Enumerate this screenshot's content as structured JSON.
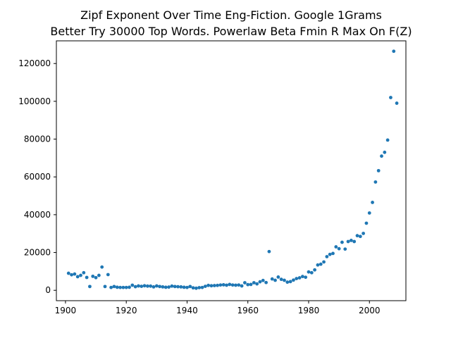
{
  "chart_data": {
    "type": "scatter",
    "title_line1": "Zipf Exponent Over Time Eng-Fiction. Google 1Grams",
    "title_line2": "Better Try 30000 Top Words. Powerlaw Beta Fmin R Max On F(Z)",
    "xlabel": "",
    "ylabel": "",
    "xlim": [
      1897,
      2012
    ],
    "ylim": [
      -5500,
      132000
    ],
    "xticks": [
      1900,
      1920,
      1940,
      1960,
      1980,
      2000
    ],
    "yticks": [
      0,
      20000,
      40000,
      60000,
      80000,
      100000,
      120000
    ],
    "grid": false,
    "marker_color": "#1f77b4",
    "points": [
      {
        "x": 1901,
        "y": 9000
      },
      {
        "x": 1902,
        "y": 8200
      },
      {
        "x": 1903,
        "y": 8600
      },
      {
        "x": 1904,
        "y": 7200
      },
      {
        "x": 1905,
        "y": 7900
      },
      {
        "x": 1906,
        "y": 9300
      },
      {
        "x": 1907,
        "y": 6800
      },
      {
        "x": 1908,
        "y": 2000
      },
      {
        "x": 1909,
        "y": 7400
      },
      {
        "x": 1910,
        "y": 6700
      },
      {
        "x": 1911,
        "y": 7900
      },
      {
        "x": 1912,
        "y": 12300
      },
      {
        "x": 1913,
        "y": 2000
      },
      {
        "x": 1914,
        "y": 8300
      },
      {
        "x": 1915,
        "y": 1500
      },
      {
        "x": 1916,
        "y": 2000
      },
      {
        "x": 1917,
        "y": 1600
      },
      {
        "x": 1918,
        "y": 1500
      },
      {
        "x": 1919,
        "y": 1500
      },
      {
        "x": 1920,
        "y": 1500
      },
      {
        "x": 1921,
        "y": 1600
      },
      {
        "x": 1922,
        "y": 2700
      },
      {
        "x": 1923,
        "y": 1900
      },
      {
        "x": 1924,
        "y": 2300
      },
      {
        "x": 1925,
        "y": 2100
      },
      {
        "x": 1926,
        "y": 2400
      },
      {
        "x": 1927,
        "y": 2200
      },
      {
        "x": 1928,
        "y": 2200
      },
      {
        "x": 1929,
        "y": 1800
      },
      {
        "x": 1930,
        "y": 2300
      },
      {
        "x": 1931,
        "y": 2000
      },
      {
        "x": 1932,
        "y": 1800
      },
      {
        "x": 1933,
        "y": 1600
      },
      {
        "x": 1934,
        "y": 1700
      },
      {
        "x": 1935,
        "y": 2200
      },
      {
        "x": 1936,
        "y": 2000
      },
      {
        "x": 1937,
        "y": 1900
      },
      {
        "x": 1938,
        "y": 1800
      },
      {
        "x": 1939,
        "y": 1600
      },
      {
        "x": 1940,
        "y": 1500
      },
      {
        "x": 1941,
        "y": 2000
      },
      {
        "x": 1942,
        "y": 1300
      },
      {
        "x": 1943,
        "y": 1100
      },
      {
        "x": 1944,
        "y": 1400
      },
      {
        "x": 1945,
        "y": 1500
      },
      {
        "x": 1946,
        "y": 2100
      },
      {
        "x": 1947,
        "y": 2600
      },
      {
        "x": 1948,
        "y": 2400
      },
      {
        "x": 1949,
        "y": 2500
      },
      {
        "x": 1950,
        "y": 2600
      },
      {
        "x": 1951,
        "y": 2800
      },
      {
        "x": 1952,
        "y": 2900
      },
      {
        "x": 1953,
        "y": 2700
      },
      {
        "x": 1954,
        "y": 3100
      },
      {
        "x": 1955,
        "y": 2800
      },
      {
        "x": 1956,
        "y": 2700
      },
      {
        "x": 1957,
        "y": 2800
      },
      {
        "x": 1958,
        "y": 2300
      },
      {
        "x": 1959,
        "y": 4000
      },
      {
        "x": 1960,
        "y": 3000
      },
      {
        "x": 1961,
        "y": 3100
      },
      {
        "x": 1962,
        "y": 4000
      },
      {
        "x": 1963,
        "y": 3400
      },
      {
        "x": 1964,
        "y": 4500
      },
      {
        "x": 1965,
        "y": 5200
      },
      {
        "x": 1966,
        "y": 4100
      },
      {
        "x": 1967,
        "y": 20500
      },
      {
        "x": 1968,
        "y": 6000
      },
      {
        "x": 1969,
        "y": 5300
      },
      {
        "x": 1970,
        "y": 7000
      },
      {
        "x": 1971,
        "y": 5800
      },
      {
        "x": 1972,
        "y": 5300
      },
      {
        "x": 1973,
        "y": 4300
      },
      {
        "x": 1974,
        "y": 4600
      },
      {
        "x": 1975,
        "y": 5400
      },
      {
        "x": 1976,
        "y": 6200
      },
      {
        "x": 1977,
        "y": 6600
      },
      {
        "x": 1978,
        "y": 7300
      },
      {
        "x": 1979,
        "y": 6900
      },
      {
        "x": 1980,
        "y": 9700
      },
      {
        "x": 1981,
        "y": 9300
      },
      {
        "x": 1982,
        "y": 10800
      },
      {
        "x": 1983,
        "y": 13400
      },
      {
        "x": 1984,
        "y": 13800
      },
      {
        "x": 1985,
        "y": 15000
      },
      {
        "x": 1986,
        "y": 17800
      },
      {
        "x": 1987,
        "y": 19000
      },
      {
        "x": 1988,
        "y": 19500
      },
      {
        "x": 1989,
        "y": 23000
      },
      {
        "x": 1990,
        "y": 22000
      },
      {
        "x": 1991,
        "y": 25400
      },
      {
        "x": 1992,
        "y": 21800
      },
      {
        "x": 1993,
        "y": 25800
      },
      {
        "x": 1994,
        "y": 26400
      },
      {
        "x": 1995,
        "y": 25800
      },
      {
        "x": 1996,
        "y": 28900
      },
      {
        "x": 1997,
        "y": 28500
      },
      {
        "x": 1998,
        "y": 30100
      },
      {
        "x": 1999,
        "y": 35500
      },
      {
        "x": 2000,
        "y": 40900
      },
      {
        "x": 2001,
        "y": 46500
      },
      {
        "x": 2002,
        "y": 57300
      },
      {
        "x": 2003,
        "y": 63300
      },
      {
        "x": 2004,
        "y": 71000
      },
      {
        "x": 2005,
        "y": 73000
      },
      {
        "x": 2006,
        "y": 79500
      },
      {
        "x": 2007,
        "y": 102000
      },
      {
        "x": 2008,
        "y": 126500
      },
      {
        "x": 2009,
        "y": 99000
      }
    ]
  }
}
